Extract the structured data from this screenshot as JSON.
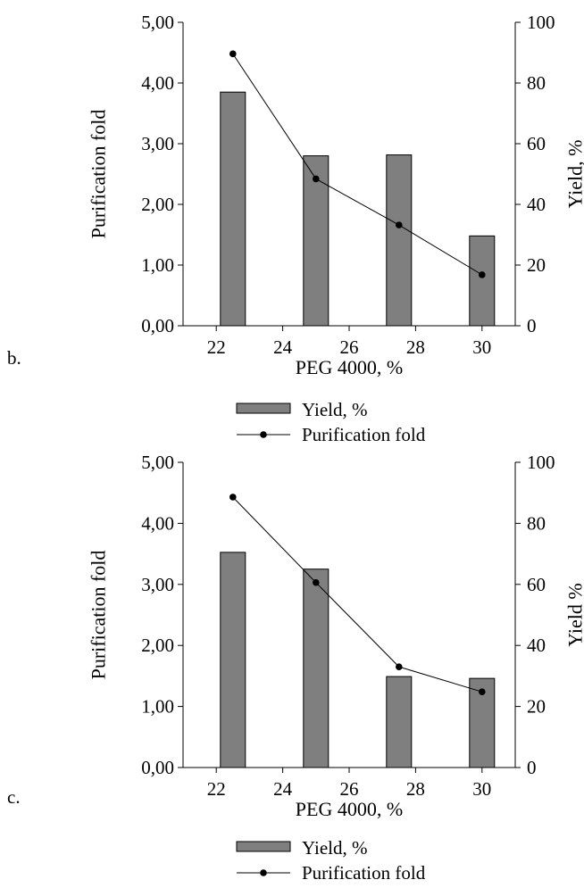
{
  "chart_data": [
    {
      "type": "bar",
      "panel_label": "b.",
      "x_label": "PEG 4000, %",
      "y_left_label": "Purification fold",
      "y_right_label": "Yield, %",
      "x_ticks": [
        "22",
        "24",
        "26",
        "28",
        "30"
      ],
      "x_range": [
        21.0,
        31.0
      ],
      "y_left_ticks": [
        "0,00",
        "1,00",
        "2,00",
        "3,00",
        "4,00",
        "5,00"
      ],
      "y_left_range": [
        0,
        5
      ],
      "y_right_ticks": [
        "0",
        "20",
        "40",
        "60",
        "80",
        "100"
      ],
      "y_right_range": [
        0,
        100
      ],
      "bar_color": "#7f7f7f",
      "series": [
        {
          "name": "Yield, %",
          "type": "bar",
          "axis": "right",
          "x": [
            22.5,
            25,
            27.5,
            30
          ],
          "values": [
            77,
            56,
            56.3,
            29.6
          ]
        },
        {
          "name": "Purification fold",
          "type": "line",
          "axis": "left",
          "x": [
            22.5,
            25,
            27.5,
            30
          ],
          "values": [
            4.48,
            2.42,
            1.66,
            0.84
          ]
        }
      ],
      "legend": [
        "Yield, %",
        "Purification fold"
      ]
    },
    {
      "type": "bar",
      "panel_label": "c.",
      "x_label": "PEG 4000, %",
      "y_left_label": "Purification fold",
      "y_right_label": "Yield %",
      "x_ticks": [
        "22",
        "24",
        "26",
        "28",
        "30"
      ],
      "x_range": [
        21.0,
        31.0
      ],
      "y_left_ticks": [
        "0,00",
        "1,00",
        "2,00",
        "3,00",
        "4,00",
        "5,00"
      ],
      "y_left_range": [
        0,
        5
      ],
      "y_right_ticks": [
        "0",
        "20",
        "40",
        "60",
        "80",
        "100"
      ],
      "y_right_range": [
        0,
        100
      ],
      "bar_color": "#7f7f7f",
      "series": [
        {
          "name": "Yield, %",
          "type": "bar",
          "axis": "right",
          "x": [
            22.5,
            25,
            27.5,
            30
          ],
          "values": [
            70.5,
            65,
            29.8,
            29.2
          ]
        },
        {
          "name": "Purification fold",
          "type": "line",
          "axis": "left",
          "x": [
            22.5,
            25,
            27.5,
            30
          ],
          "values": [
            4.43,
            3.03,
            1.65,
            1.24
          ]
        }
      ],
      "legend": [
        "Yield, %",
        "Purification fold"
      ]
    }
  ]
}
